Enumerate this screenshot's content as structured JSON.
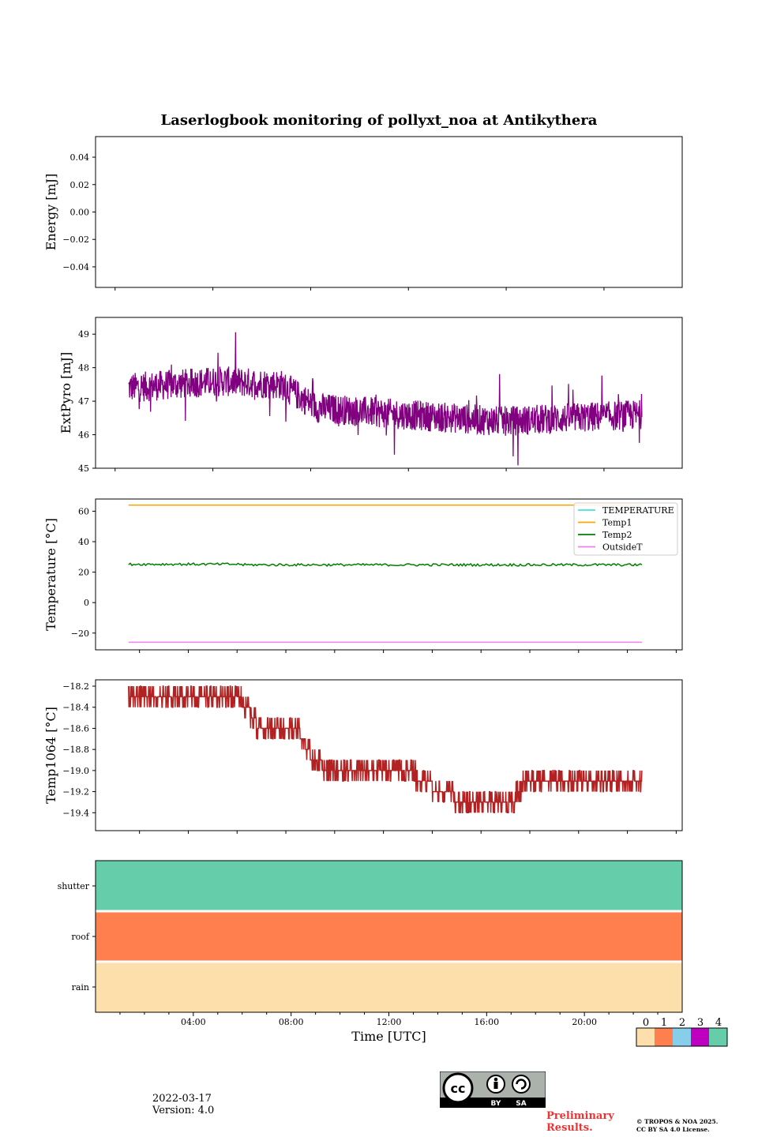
{
  "title": "Laserlogbook monitoring of pollyxt_noa at Antikythera",
  "date": "2022-03-17",
  "version": "Version: 4.0",
  "preliminary": "Preliminary\nResults.",
  "preliminary_line1": "Preliminary",
  "preliminary_line2": "Results.",
  "copyright_line1": "© TROPOS & NOA 2025.",
  "copyright_line2": "CC BY SA 4.0 License.",
  "license_badge": {
    "label_by": "BY",
    "label_sa": "SA"
  },
  "chart_data": [
    {
      "type": "line",
      "id": "energy",
      "ylabel": "Energy [mJ]",
      "ylim": [
        -0.055,
        0.055
      ],
      "yticks": [
        0.04,
        0.02,
        0.0,
        -0.02,
        -0.04
      ],
      "ytick_labels": [
        "0.04",
        "0.02",
        "0.00",
        "−0.02",
        "−0.04"
      ],
      "series": []
    },
    {
      "type": "line",
      "id": "extpyro",
      "ylabel": "ExtPyro [mJ]",
      "ylim": [
        45,
        49.5
      ],
      "yticks": [
        45,
        46,
        47,
        48,
        49
      ],
      "ytick_labels": [
        "45",
        "46",
        "47",
        "48",
        "49"
      ],
      "color": "#800080",
      "trend": [
        [
          0.8,
          47.4
        ],
        [
          4.5,
          47.6
        ],
        [
          7.0,
          47.5
        ],
        [
          8.5,
          46.8
        ],
        [
          12.0,
          46.6
        ],
        [
          16.0,
          46.4
        ],
        [
          21.7,
          46.6
        ]
      ],
      "noise": 0.45
    },
    {
      "type": "line",
      "id": "temperature",
      "ylabel": "Temperature [°C]",
      "ylim": [
        -31,
        68
      ],
      "yticks": [
        60,
        40,
        20,
        0,
        -20
      ],
      "ytick_labels": [
        "60",
        "40",
        "20",
        "0",
        "−20"
      ],
      "legend": "top-right",
      "series": [
        {
          "name": "TEMPERATURE",
          "color": "#40e0e0",
          "values": []
        },
        {
          "name": "Temp1",
          "color": "#ffa500",
          "level": 64
        },
        {
          "name": "Temp2",
          "color": "#008000",
          "level": 24.8
        },
        {
          "name": "OutsideT",
          "color": "#ee82ee",
          "level": -26
        }
      ]
    },
    {
      "type": "line",
      "id": "temp1064",
      "ylabel": "Temp1064 [°C]",
      "ylim": [
        -19.57,
        -18.14
      ],
      "yticks": [
        -18.2,
        -18.4,
        -18.6,
        -18.8,
        -19.0,
        -19.2,
        -19.4
      ],
      "ytick_labels": [
        "−18.2",
        "−18.4",
        "−18.6",
        "−18.8",
        "−19.0",
        "−19.2",
        "−19.4"
      ],
      "color": "#b22222",
      "trend": [
        [
          0.8,
          -18.35
        ],
        [
          5.5,
          -18.35
        ],
        [
          6.0,
          -18.55
        ],
        [
          7.8,
          -18.65
        ],
        [
          8.3,
          -18.9
        ],
        [
          9.5,
          -19.05
        ],
        [
          12.5,
          -19.05
        ],
        [
          13.5,
          -19.2
        ],
        [
          15.0,
          -19.35
        ],
        [
          16.4,
          -19.3
        ],
        [
          17.0,
          -19.1
        ],
        [
          19.0,
          -19.1
        ],
        [
          21.7,
          -19.05
        ]
      ],
      "step": 0.1
    },
    {
      "type": "heatmap",
      "id": "status",
      "rows": [
        "shutter",
        "roof",
        "rain"
      ],
      "row_values": [
        4,
        1,
        0
      ],
      "colormap_labels": [
        "0",
        "1",
        "2",
        "3",
        "4"
      ],
      "colormap_colors": [
        "#fddfac",
        "#ff7f4e",
        "#87ceeb",
        "#c000c0",
        "#66cdaa"
      ]
    }
  ],
  "xaxis": {
    "xlabel": "Time [UTC]",
    "xlim_hours": [
      0,
      24
    ],
    "xtick_labels": [
      "04:00",
      "08:00",
      "12:00",
      "16:00",
      "20:00"
    ],
    "xtick_hours": [
      4,
      8,
      12,
      16,
      20
    ]
  }
}
